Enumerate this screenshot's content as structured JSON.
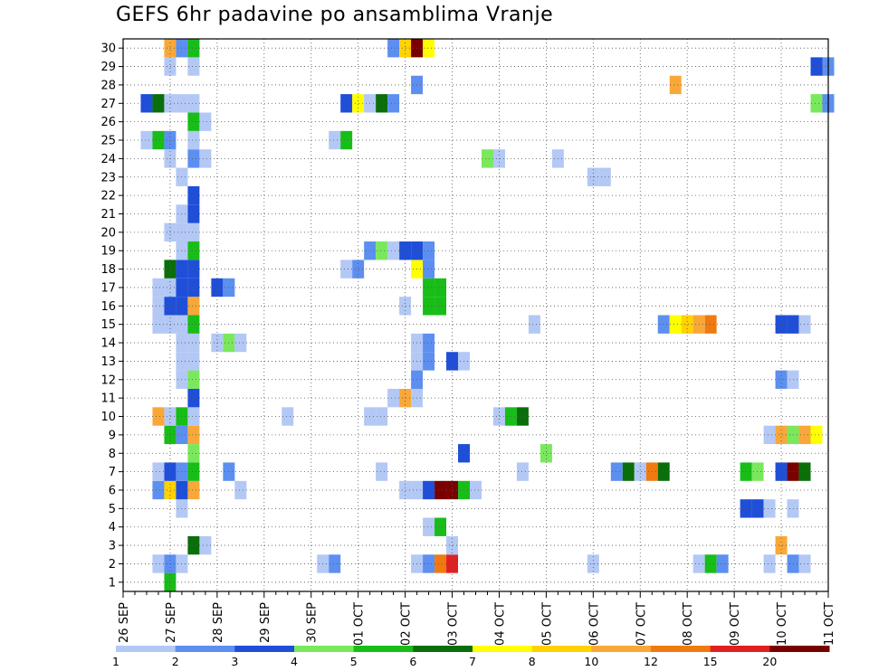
{
  "chart_data": {
    "type": "heatmap",
    "title": "GEFS 6hr padavine po ansamblima Vranje",
    "xlabel": "",
    "ylabel": "",
    "x_ticks": [
      "26 SEP",
      "27 SEP",
      "28 SEP",
      "29 SEP",
      "30 SEP",
      "01 OCT",
      "02 OCT",
      "03 OCT",
      "04 OCT",
      "05 OCT",
      "06 OCT",
      "07 OCT",
      "08 OCT",
      "09 OCT",
      "10 OCT",
      "11 OCT"
    ],
    "y_ticks": [
      1,
      2,
      3,
      4,
      5,
      6,
      7,
      8,
      9,
      10,
      11,
      12,
      13,
      14,
      15,
      16,
      17,
      18,
      19,
      20,
      21,
      22,
      23,
      24,
      25,
      26,
      27,
      28,
      29,
      30
    ],
    "x_range": [
      0,
      60
    ],
    "y_range": [
      0.5,
      30.5
    ],
    "grid": true,
    "legend_placement": "bottom",
    "colorbar": {
      "labels": [
        "1",
        "2",
        "3",
        "4",
        "5",
        "6",
        "7",
        "8",
        "10",
        "12",
        "15",
        "20"
      ],
      "colors": [
        "#b3c8f5",
        "#5c8ff0",
        "#1f4fd8",
        "#7ae85c",
        "#18bd18",
        "#0a6e0a",
        "#ffff00",
        "#ffd200",
        "#f8a838",
        "#f07a10",
        "#e02020",
        "#7a0000"
      ]
    },
    "cells": [
      {
        "m": 1,
        "t": [
          [
            4,
            4
          ]
        ]
      },
      {
        "m": 2,
        "t": [
          [
            3,
            0
          ],
          [
            4,
            1
          ],
          [
            5,
            0
          ],
          [
            17,
            0
          ],
          [
            18,
            1
          ],
          [
            25,
            0
          ],
          [
            26,
            1
          ],
          [
            27,
            9
          ],
          [
            28,
            10
          ],
          [
            40,
            0
          ],
          [
            49,
            0
          ],
          [
            50,
            4
          ],
          [
            51,
            1
          ],
          [
            55,
            0
          ],
          [
            57,
            1
          ],
          [
            58,
            0
          ]
        ]
      },
      {
        "m": 3,
        "t": [
          [
            6,
            5
          ],
          [
            7,
            0
          ],
          [
            28,
            0
          ],
          [
            56,
            8
          ]
        ]
      },
      {
        "m": 4,
        "t": [
          [
            26,
            0
          ],
          [
            27,
            4
          ]
        ]
      },
      {
        "m": 5,
        "t": [
          [
            5,
            0
          ],
          [
            53,
            2
          ],
          [
            54,
            2
          ],
          [
            55,
            0
          ],
          [
            57,
            0
          ]
        ]
      },
      {
        "m": 6,
        "t": [
          [
            3,
            1
          ],
          [
            4,
            7
          ],
          [
            5,
            2
          ],
          [
            6,
            8
          ],
          [
            10,
            0
          ],
          [
            24,
            0
          ],
          [
            25,
            0
          ],
          [
            26,
            2
          ],
          [
            27,
            11
          ],
          [
            28,
            11
          ],
          [
            29,
            4
          ],
          [
            30,
            0
          ]
        ]
      },
      {
        "m": 7,
        "t": [
          [
            3,
            0
          ],
          [
            4,
            2
          ],
          [
            5,
            1
          ],
          [
            6,
            4
          ],
          [
            9,
            1
          ],
          [
            22,
            0
          ],
          [
            34,
            0
          ],
          [
            42,
            1
          ],
          [
            43,
            5
          ],
          [
            44,
            0
          ],
          [
            45,
            9
          ],
          [
            46,
            5
          ],
          [
            53,
            4
          ],
          [
            54,
            3
          ],
          [
            56,
            2
          ],
          [
            57,
            11
          ],
          [
            58,
            5
          ]
        ]
      },
      {
        "m": 8,
        "t": [
          [
            6,
            3
          ],
          [
            29,
            2
          ],
          [
            36,
            3
          ]
        ]
      },
      {
        "m": 9,
        "t": [
          [
            4,
            4
          ],
          [
            5,
            1
          ],
          [
            6,
            8
          ],
          [
            55,
            0
          ],
          [
            56,
            8
          ],
          [
            57,
            3
          ],
          [
            58,
            8
          ],
          [
            59,
            6
          ]
        ]
      },
      {
        "m": 10,
        "t": [
          [
            3,
            8
          ],
          [
            4,
            0
          ],
          [
            5,
            4
          ],
          [
            6,
            0
          ],
          [
            14,
            0
          ],
          [
            21,
            0
          ],
          [
            22,
            0
          ],
          [
            32,
            0
          ],
          [
            33,
            4
          ],
          [
            34,
            5
          ]
        ]
      },
      {
        "m": 11,
        "t": [
          [
            6,
            2
          ],
          [
            23,
            0
          ],
          [
            24,
            8
          ],
          [
            25,
            0
          ]
        ]
      },
      {
        "m": 12,
        "t": [
          [
            5,
            0
          ],
          [
            6,
            3
          ],
          [
            25,
            1
          ],
          [
            56,
            1
          ],
          [
            57,
            0
          ]
        ]
      },
      {
        "m": 13,
        "t": [
          [
            5,
            0
          ],
          [
            6,
            0
          ],
          [
            25,
            0
          ],
          [
            26,
            1
          ],
          [
            28,
            2
          ],
          [
            29,
            0
          ]
        ]
      },
      {
        "m": 14,
        "t": [
          [
            5,
            0
          ],
          [
            6,
            0
          ],
          [
            8,
            0
          ],
          [
            9,
            3
          ],
          [
            10,
            0
          ],
          [
            25,
            0
          ],
          [
            26,
            1
          ]
        ]
      },
      {
        "m": 15,
        "t": [
          [
            3,
            0
          ],
          [
            4,
            0
          ],
          [
            5,
            0
          ],
          [
            6,
            4
          ],
          [
            35,
            0
          ],
          [
            46,
            1
          ],
          [
            47,
            6
          ],
          [
            48,
            7
          ],
          [
            49,
            8
          ],
          [
            50,
            9
          ],
          [
            56,
            2
          ],
          [
            57,
            2
          ],
          [
            58,
            0
          ]
        ]
      },
      {
        "m": 16,
        "t": [
          [
            3,
            0
          ],
          [
            4,
            2
          ],
          [
            5,
            2
          ],
          [
            6,
            8
          ],
          [
            24,
            0
          ],
          [
            26,
            4
          ],
          [
            27,
            4
          ]
        ]
      },
      {
        "m": 17,
        "t": [
          [
            3,
            0
          ],
          [
            4,
            0
          ],
          [
            5,
            2
          ],
          [
            6,
            2
          ],
          [
            8,
            2
          ],
          [
            9,
            1
          ],
          [
            26,
            4
          ],
          [
            27,
            4
          ]
        ]
      },
      {
        "m": 18,
        "t": [
          [
            4,
            5
          ],
          [
            5,
            2
          ],
          [
            6,
            2
          ],
          [
            19,
            0
          ],
          [
            20,
            1
          ],
          [
            25,
            6
          ],
          [
            26,
            1
          ]
        ]
      },
      {
        "m": 19,
        "t": [
          [
            5,
            0
          ],
          [
            6,
            4
          ],
          [
            21,
            1
          ],
          [
            22,
            3
          ],
          [
            23,
            0
          ],
          [
            24,
            2
          ],
          [
            25,
            2
          ],
          [
            26,
            1
          ]
        ]
      },
      {
        "m": 20,
        "t": [
          [
            4,
            0
          ],
          [
            5,
            0
          ],
          [
            6,
            0
          ]
        ]
      },
      {
        "m": 21,
        "t": [
          [
            5,
            0
          ],
          [
            6,
            2
          ]
        ]
      },
      {
        "m": 22,
        "t": [
          [
            6,
            2
          ]
        ]
      },
      {
        "m": 23,
        "t": [
          [
            5,
            0
          ],
          [
            40,
            0
          ],
          [
            41,
            0
          ]
        ]
      },
      {
        "m": 24,
        "t": [
          [
            4,
            0
          ],
          [
            6,
            1
          ],
          [
            7,
            0
          ],
          [
            31,
            3
          ],
          [
            32,
            0
          ],
          [
            37,
            0
          ]
        ]
      },
      {
        "m": 25,
        "t": [
          [
            2,
            0
          ],
          [
            3,
            4
          ],
          [
            4,
            1
          ],
          [
            6,
            0
          ],
          [
            18,
            0
          ],
          [
            19,
            4
          ]
        ]
      },
      {
        "m": 26,
        "t": [
          [
            6,
            4
          ],
          [
            7,
            0
          ]
        ]
      },
      {
        "m": 27,
        "t": [
          [
            2,
            2
          ],
          [
            3,
            5
          ],
          [
            4,
            0
          ],
          [
            5,
            0
          ],
          [
            6,
            0
          ],
          [
            19,
            2
          ],
          [
            20,
            6
          ],
          [
            21,
            0
          ],
          [
            22,
            5
          ],
          [
            23,
            1
          ],
          [
            59,
            3
          ],
          [
            60,
            1
          ]
        ]
      },
      {
        "m": 28,
        "t": [
          [
            25,
            1
          ],
          [
            47,
            8
          ]
        ]
      },
      {
        "m": 29,
        "t": [
          [
            4,
            0
          ],
          [
            6,
            0
          ],
          [
            59,
            2
          ],
          [
            60,
            1
          ]
        ]
      },
      {
        "m": 30,
        "t": [
          [
            4,
            8
          ],
          [
            5,
            1
          ],
          [
            6,
            4
          ],
          [
            23,
            1
          ],
          [
            24,
            7
          ],
          [
            25,
            11
          ],
          [
            26,
            6
          ]
        ]
      }
    ]
  }
}
